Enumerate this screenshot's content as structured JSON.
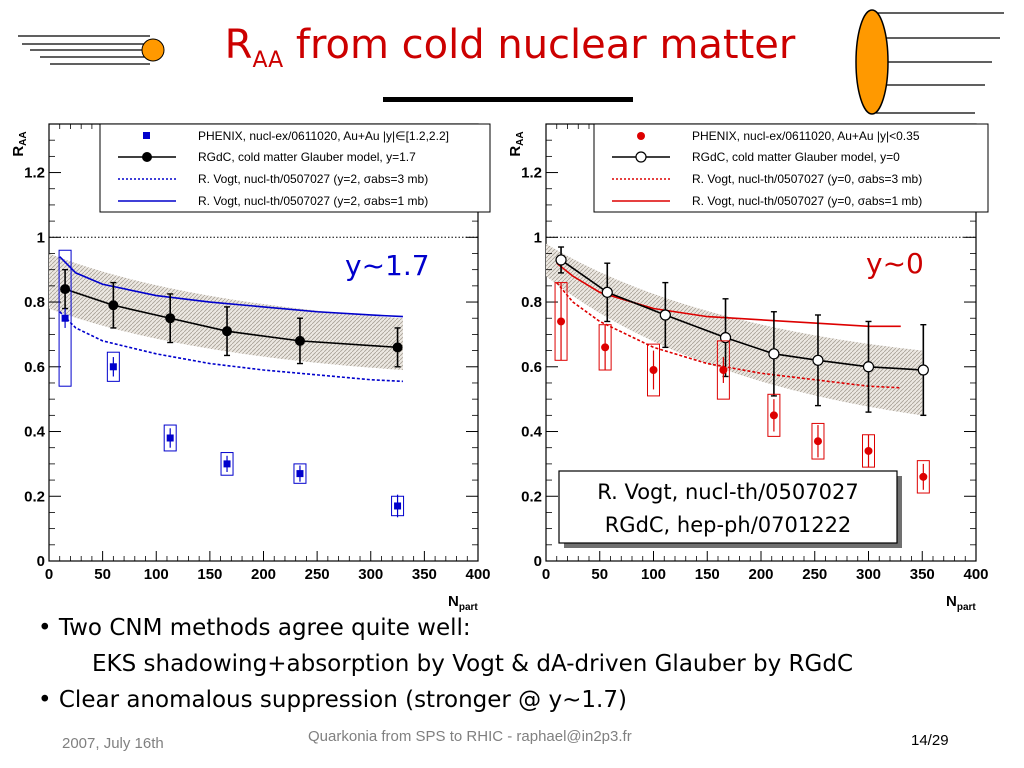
{
  "slide": {
    "title_main": "R",
    "title_sub": "AA",
    "title_rest": " from cold nuclear matter",
    "bullets": [
      "• Two CNM methods agree quite well:",
      "EKS shadowing+absorption by Vogt & dA-driven Glauber by RGdC",
      "• Clear anomalous suppression (stronger @ y~1.7)"
    ],
    "footer": {
      "date": "2007, July 16th",
      "center": "Quarkonia from SPS to RHIC - raphael@in2p3.fr",
      "page": "14/29"
    }
  },
  "chart_data": [
    {
      "type": "scatter",
      "panel": "forward",
      "label": "y~1.7",
      "label_color": "#0000cc",
      "ylabel": "RAA",
      "xlabel": "Npart",
      "xlim": [
        0,
        400
      ],
      "ylim": [
        0,
        1.35
      ],
      "xticks": [
        0,
        50,
        100,
        150,
        200,
        250,
        300,
        350,
        400
      ],
      "yticks": [
        0,
        0.2,
        0.4,
        0.6,
        0.8,
        1,
        1.2
      ],
      "reference_line": 1,
      "legend": [
        "PHENIX, nucl-ex/0611020, Au+Au |y|∈[1.2,2.2]",
        "RGdC, cold matter Glauber model, y=1.7",
        "R. Vogt, nucl-th/0507027 (y=2, σabs=3 mb)",
        "R. Vogt, nucl-th/0507027 (y=2, σabs=1 mb)"
      ],
      "data_points": {
        "color": "#0000cc",
        "x": [
          15,
          60,
          113,
          166,
          234,
          325
        ],
        "y": [
          0.75,
          0.6,
          0.38,
          0.3,
          0.27,
          0.17
        ],
        "err": [
          0.03,
          0.03,
          0.03,
          0.025,
          0.025,
          0.035
        ],
        "syst": [
          0.21,
          0.045,
          0.04,
          0.035,
          0.03,
          0.03
        ]
      },
      "glauber": {
        "x": [
          15,
          60,
          113,
          166,
          234,
          325
        ],
        "y": [
          0.84,
          0.79,
          0.75,
          0.71,
          0.68,
          0.66
        ],
        "err": [
          0.06,
          0.07,
          0.075,
          0.075,
          0.07,
          0.06
        ]
      },
      "band": {
        "x": [
          0,
          330
        ],
        "upper": [
          0.95,
          0.75
        ],
        "lower": [
          0.78,
          0.59
        ]
      },
      "vogt_3mb": {
        "x": [
          10,
          25,
          50,
          100,
          150,
          200,
          250,
          300,
          330
        ],
        "y": [
          0.77,
          0.72,
          0.68,
          0.64,
          0.61,
          0.59,
          0.575,
          0.56,
          0.555
        ]
      },
      "vogt_1mb": {
        "x": [
          10,
          25,
          50,
          100,
          150,
          200,
          250,
          300,
          330
        ],
        "y": [
          0.94,
          0.89,
          0.855,
          0.82,
          0.8,
          0.785,
          0.77,
          0.76,
          0.755
        ]
      }
    },
    {
      "type": "scatter",
      "panel": "mid",
      "label": "y~0",
      "label_color": "#cc0000",
      "ylabel": "RAA",
      "xlabel": "Npart",
      "xlim": [
        0,
        400
      ],
      "ylim": [
        0,
        1.35
      ],
      "xticks": [
        0,
        50,
        100,
        150,
        200,
        250,
        300,
        350,
        400
      ],
      "yticks": [
        0,
        0.2,
        0.4,
        0.6,
        0.8,
        1,
        1.2
      ],
      "reference_line": 1,
      "legend": [
        "PHENIX, nucl-ex/0611020, Au+Au |y|<0.35",
        "RGdC, cold matter Glauber model, y=0",
        "R. Vogt, nucl-th/0507027 (y=0, σabs=3 mb)",
        "R. Vogt, nucl-th/0507027 (y=0, σabs=1 mb)"
      ],
      "annotation": [
        "R. Vogt, nucl-th/0507027",
        "RGdC, hep-ph/0701222"
      ],
      "data_points": {
        "color": "#dd0000",
        "x": [
          14,
          55,
          100,
          165,
          212,
          253,
          300,
          351
        ],
        "y": [
          0.74,
          0.66,
          0.59,
          0.59,
          0.45,
          0.37,
          0.34,
          0.26
        ],
        "err": [
          0.12,
          0.07,
          0.06,
          0.04,
          0.05,
          0.05,
          0.05,
          0.04
        ],
        "syst": [
          0.12,
          0.07,
          0.08,
          0.09,
          0.065,
          0.055,
          0.05,
          0.05
        ]
      },
      "glauber": {
        "x": [
          14,
          57,
          111,
          167,
          212,
          253,
          300,
          351
        ],
        "y": [
          0.93,
          0.83,
          0.76,
          0.69,
          0.64,
          0.62,
          0.6,
          0.59
        ],
        "err": [
          0.04,
          0.09,
          0.1,
          0.12,
          0.13,
          0.14,
          0.14,
          0.14
        ]
      },
      "band": {
        "x": [
          0,
          350
        ],
        "upper": [
          0.98,
          0.65
        ],
        "lower": [
          0.88,
          0.45
        ]
      },
      "vogt_3mb": {
        "x": [
          10,
          25,
          50,
          100,
          150,
          200,
          250,
          300,
          330
        ],
        "y": [
          0.86,
          0.8,
          0.74,
          0.66,
          0.61,
          0.58,
          0.56,
          0.54,
          0.535
        ]
      },
      "vogt_1mb": {
        "x": [
          10,
          25,
          50,
          100,
          150,
          200,
          250,
          300,
          330
        ],
        "y": [
          0.92,
          0.88,
          0.83,
          0.78,
          0.755,
          0.745,
          0.735,
          0.725,
          0.725
        ]
      }
    }
  ]
}
